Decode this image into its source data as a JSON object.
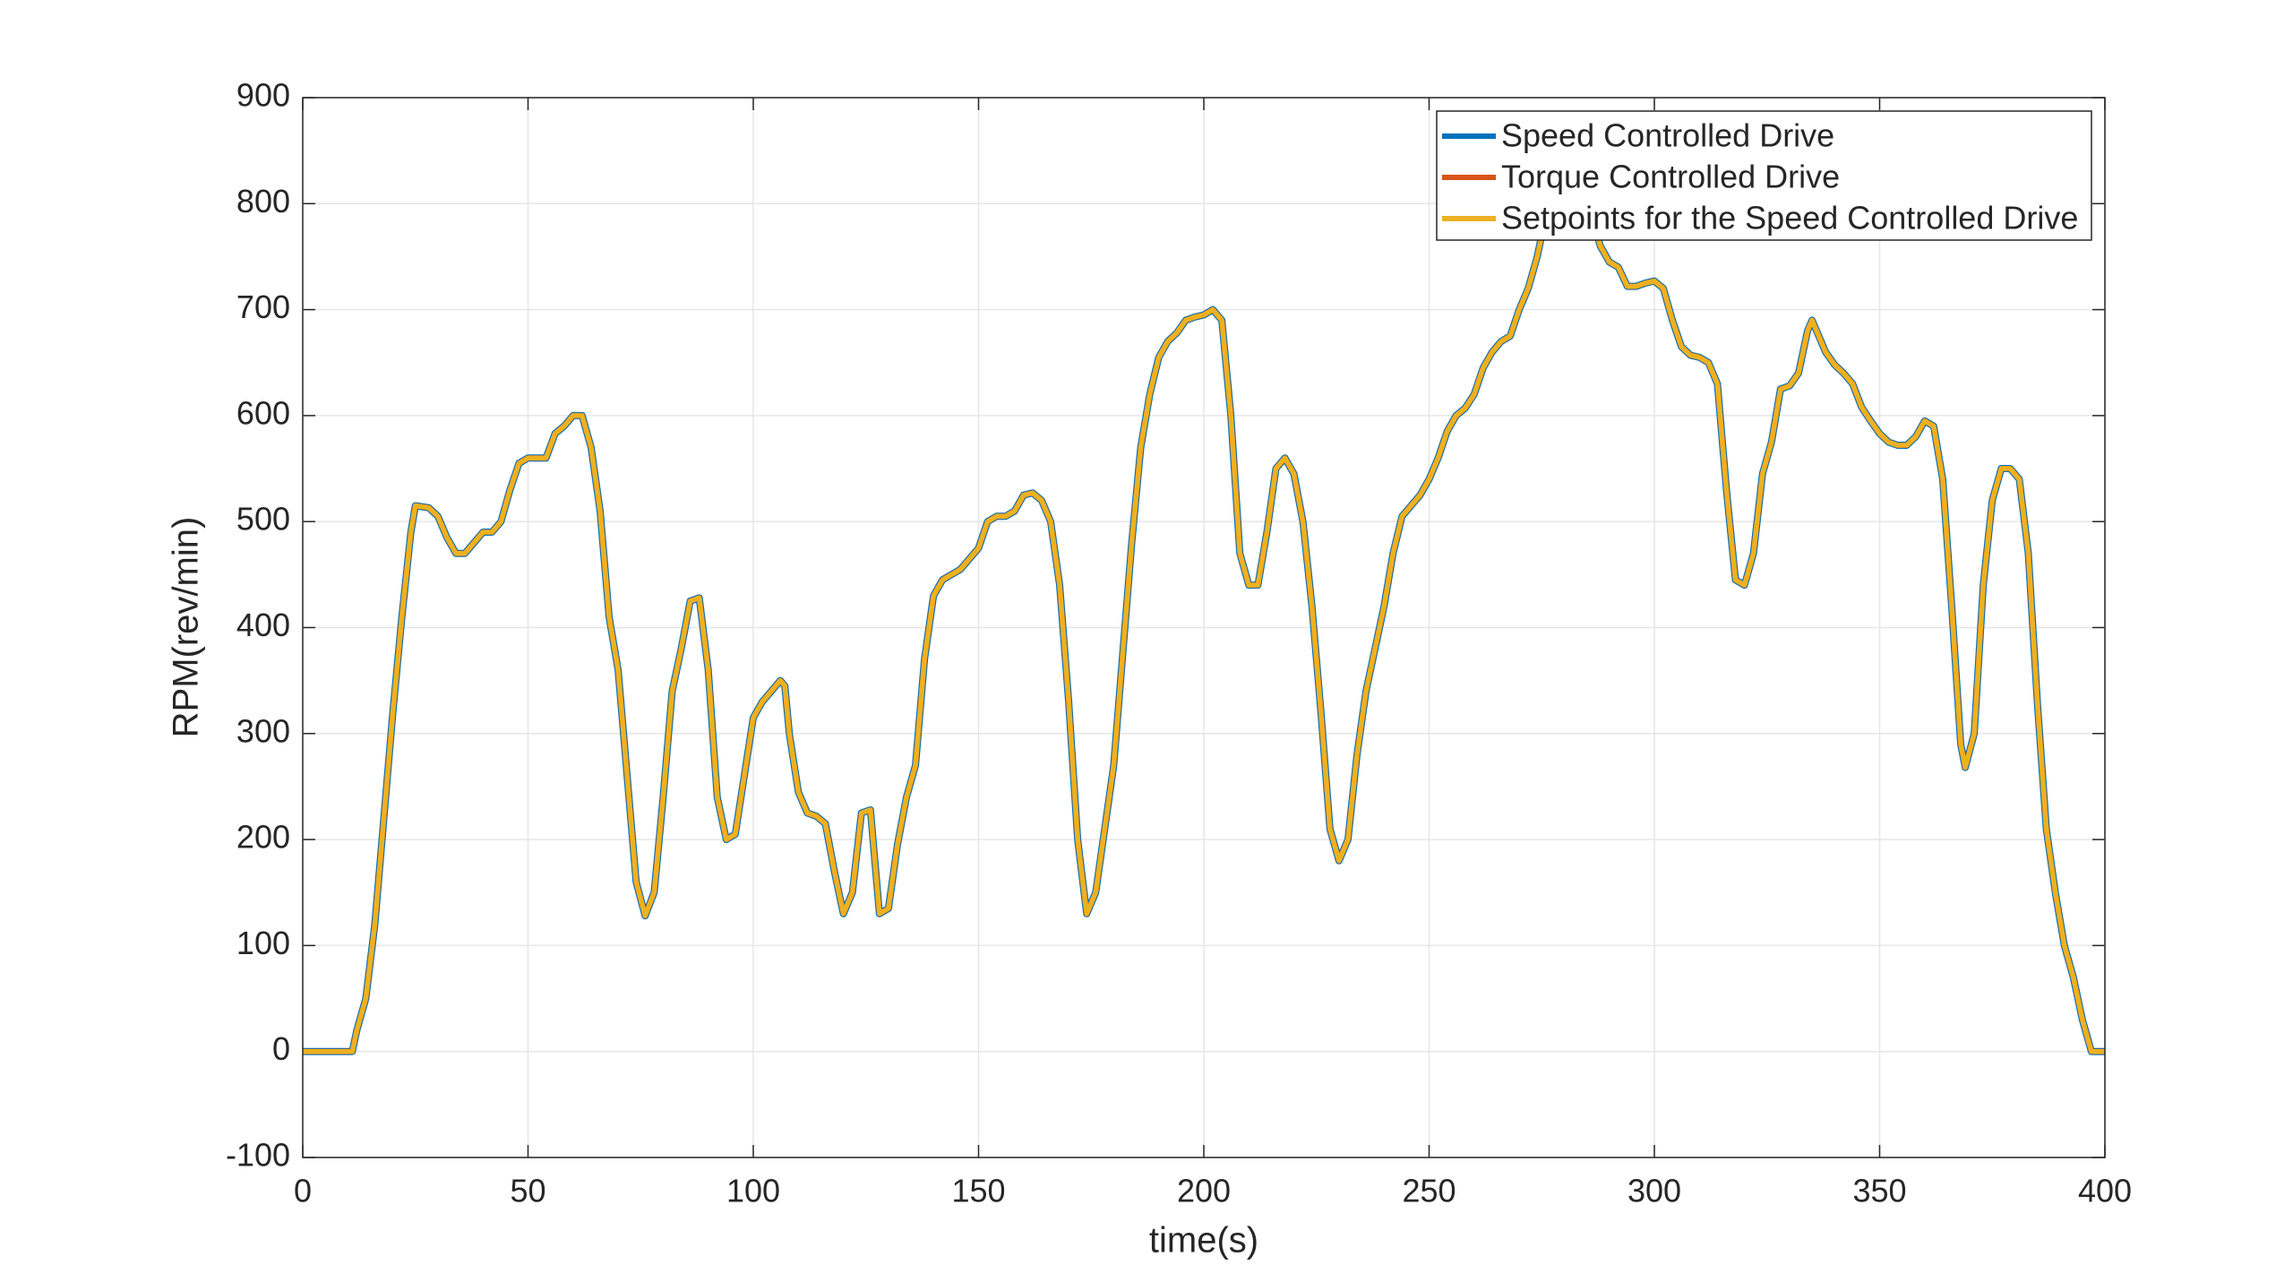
{
  "chart_data": {
    "type": "line",
    "xlabel": "time(s)",
    "ylabel": "RPM(rev/min)",
    "x": [
      0,
      11,
      12,
      14,
      16,
      18,
      20,
      22,
      24,
      25,
      28,
      30,
      32,
      34,
      36,
      38,
      40,
      42,
      44,
      46,
      48,
      50,
      52,
      54,
      56,
      58,
      60,
      62,
      64,
      66,
      68,
      70,
      72,
      74,
      76,
      78,
      80,
      82,
      84,
      86,
      88,
      90,
      92,
      94,
      96,
      98,
      100,
      102,
      104,
      106,
      107,
      108,
      110,
      112,
      114,
      116,
      118,
      120,
      122,
      124,
      126,
      128,
      130,
      132,
      134,
      136,
      138,
      140,
      142,
      144,
      146,
      148,
      150,
      152,
      154,
      156,
      158,
      160,
      162,
      164,
      166,
      168,
      170,
      172,
      174,
      176,
      178,
      180,
      182,
      184,
      186,
      188,
      190,
      192,
      194,
      196,
      198,
      200,
      202,
      204,
      206,
      208,
      210,
      212,
      214,
      216,
      218,
      220,
      222,
      224,
      226,
      228,
      230,
      232,
      234,
      236,
      238,
      240,
      242,
      244,
      246,
      248,
      250,
      252,
      254,
      256,
      258,
      260,
      262,
      264,
      266,
      268,
      270,
      272,
      274,
      276,
      278,
      280,
      284,
      286,
      288,
      290,
      292,
      294,
      296,
      298,
      300,
      302,
      304,
      306,
      308,
      310,
      312,
      314,
      316,
      318,
      320,
      322,
      324,
      326,
      328,
      330,
      332,
      334,
      335,
      336,
      338,
      340,
      342,
      344,
      346,
      348,
      350,
      352,
      354,
      356,
      358,
      360,
      362,
      364,
      366,
      368,
      369,
      371,
      373,
      375,
      377,
      379,
      381,
      383,
      385,
      387,
      389,
      391,
      393,
      395,
      397,
      400
    ],
    "series": [
      {
        "name": "Speed Controlled Drive",
        "color": "#0072bd",
        "values": [
          0,
          0,
          20,
          50,
          120,
          220,
          320,
          410,
          490,
          515,
          513,
          505,
          485,
          470,
          470,
          480,
          490,
          490,
          500,
          530,
          555,
          560,
          560,
          560,
          583,
          590,
          600,
          600,
          570,
          510,
          410,
          360,
          260,
          160,
          128,
          150,
          240,
          340,
          380,
          425,
          428,
          360,
          240,
          200,
          205,
          260,
          315,
          330,
          340,
          350,
          345,
          300,
          245,
          225,
          222,
          215,
          170,
          130,
          150,
          225,
          228,
          130,
          135,
          195,
          240,
          270,
          370,
          430,
          445,
          450,
          455,
          465,
          475,
          500,
          505,
          505,
          510,
          525,
          527,
          520,
          500,
          440,
          330,
          200,
          130,
          150,
          210,
          270,
          375,
          480,
          570,
          620,
          655,
          670,
          678,
          690,
          693,
          695,
          700,
          690,
          600,
          470,
          440,
          440,
          490,
          550,
          560,
          545,
          500,
          420,
          320,
          210,
          180,
          200,
          280,
          340,
          380,
          420,
          470,
          505,
          515,
          525,
          540,
          560,
          585,
          600,
          607,
          620,
          645,
          660,
          670,
          675,
          700,
          720,
          750,
          790,
          800,
          820,
          820,
          790,
          760,
          745,
          740,
          722,
          722,
          725,
          727,
          720,
          690,
          665,
          657,
          655,
          650,
          630,
          530,
          445,
          440,
          470,
          545,
          575,
          625,
          628,
          640,
          680,
          690,
          680,
          660,
          648,
          640,
          630,
          608,
          595,
          583,
          575,
          572,
          572,
          580,
          595,
          590,
          540,
          420,
          290,
          268,
          300,
          440,
          520,
          550,
          550,
          540,
          470,
          330,
          210,
          150,
          100,
          70,
          30,
          0,
          0
        ]
      },
      {
        "name": "Torque Controlled Drive",
        "color": "#d95319",
        "values": [
          0,
          0,
          20,
          50,
          120,
          220,
          320,
          410,
          490,
          515,
          513,
          505,
          485,
          470,
          470,
          480,
          490,
          490,
          500,
          530,
          555,
          560,
          560,
          560,
          583,
          590,
          600,
          600,
          570,
          510,
          410,
          360,
          260,
          160,
          128,
          150,
          240,
          340,
          380,
          425,
          428,
          360,
          240,
          200,
          205,
          260,
          315,
          330,
          340,
          350,
          345,
          300,
          245,
          225,
          222,
          215,
          170,
          130,
          150,
          225,
          228,
          130,
          135,
          195,
          240,
          270,
          370,
          430,
          445,
          450,
          455,
          465,
          475,
          500,
          505,
          505,
          510,
          525,
          527,
          520,
          500,
          440,
          330,
          200,
          130,
          150,
          210,
          270,
          375,
          480,
          570,
          620,
          655,
          670,
          678,
          690,
          693,
          695,
          700,
          690,
          600,
          470,
          440,
          440,
          490,
          550,
          560,
          545,
          500,
          420,
          320,
          210,
          180,
          200,
          280,
          340,
          380,
          420,
          470,
          505,
          515,
          525,
          540,
          560,
          585,
          600,
          607,
          620,
          645,
          660,
          670,
          675,
          700,
          720,
          750,
          790,
          800,
          820,
          820,
          790,
          760,
          745,
          740,
          722,
          722,
          725,
          727,
          720,
          690,
          665,
          657,
          655,
          650,
          630,
          530,
          445,
          440,
          470,
          545,
          575,
          625,
          628,
          640,
          680,
          690,
          680,
          660,
          648,
          640,
          630,
          608,
          595,
          583,
          575,
          572,
          572,
          580,
          595,
          590,
          540,
          420,
          290,
          268,
          300,
          440,
          520,
          550,
          550,
          540,
          470,
          330,
          210,
          150,
          100,
          70,
          30,
          0,
          0
        ]
      },
      {
        "name": "Setpoints for the Speed Controlled Drive",
        "color": "#edb120",
        "values": [
          0,
          0,
          20,
          50,
          120,
          220,
          320,
          410,
          490,
          515,
          513,
          505,
          485,
          470,
          470,
          480,
          490,
          490,
          500,
          530,
          555,
          560,
          560,
          560,
          583,
          590,
          600,
          600,
          570,
          510,
          410,
          360,
          260,
          160,
          128,
          150,
          240,
          340,
          380,
          425,
          428,
          360,
          240,
          200,
          205,
          260,
          315,
          330,
          340,
          350,
          345,
          300,
          245,
          225,
          222,
          215,
          170,
          130,
          150,
          225,
          228,
          130,
          135,
          195,
          240,
          270,
          370,
          430,
          445,
          450,
          455,
          465,
          475,
          500,
          505,
          505,
          510,
          525,
          527,
          520,
          500,
          440,
          330,
          200,
          130,
          150,
          210,
          270,
          375,
          480,
          570,
          620,
          655,
          670,
          678,
          690,
          693,
          695,
          700,
          690,
          600,
          470,
          440,
          440,
          490,
          550,
          560,
          545,
          500,
          420,
          320,
          210,
          180,
          200,
          280,
          340,
          380,
          420,
          470,
          505,
          515,
          525,
          540,
          560,
          585,
          600,
          607,
          620,
          645,
          660,
          670,
          675,
          700,
          720,
          750,
          790,
          800,
          820,
          820,
          790,
          760,
          745,
          740,
          722,
          722,
          725,
          727,
          720,
          690,
          665,
          657,
          655,
          650,
          630,
          530,
          445,
          440,
          470,
          545,
          575,
          625,
          628,
          640,
          680,
          690,
          680,
          660,
          648,
          640,
          630,
          608,
          595,
          583,
          575,
          572,
          572,
          580,
          595,
          590,
          540,
          420,
          290,
          268,
          300,
          440,
          520,
          550,
          550,
          540,
          470,
          330,
          210,
          150,
          100,
          70,
          30,
          0,
          0
        ]
      }
    ],
    "xlim": [
      0,
      400
    ],
    "xticks": [
      0,
      50,
      100,
      150,
      200,
      250,
      300,
      350,
      400
    ],
    "ylim": [
      -100,
      900
    ],
    "yticks": [
      -100,
      0,
      100,
      200,
      300,
      400,
      500,
      600,
      700,
      800,
      900
    ],
    "grid": true,
    "legend": "top-right"
  }
}
